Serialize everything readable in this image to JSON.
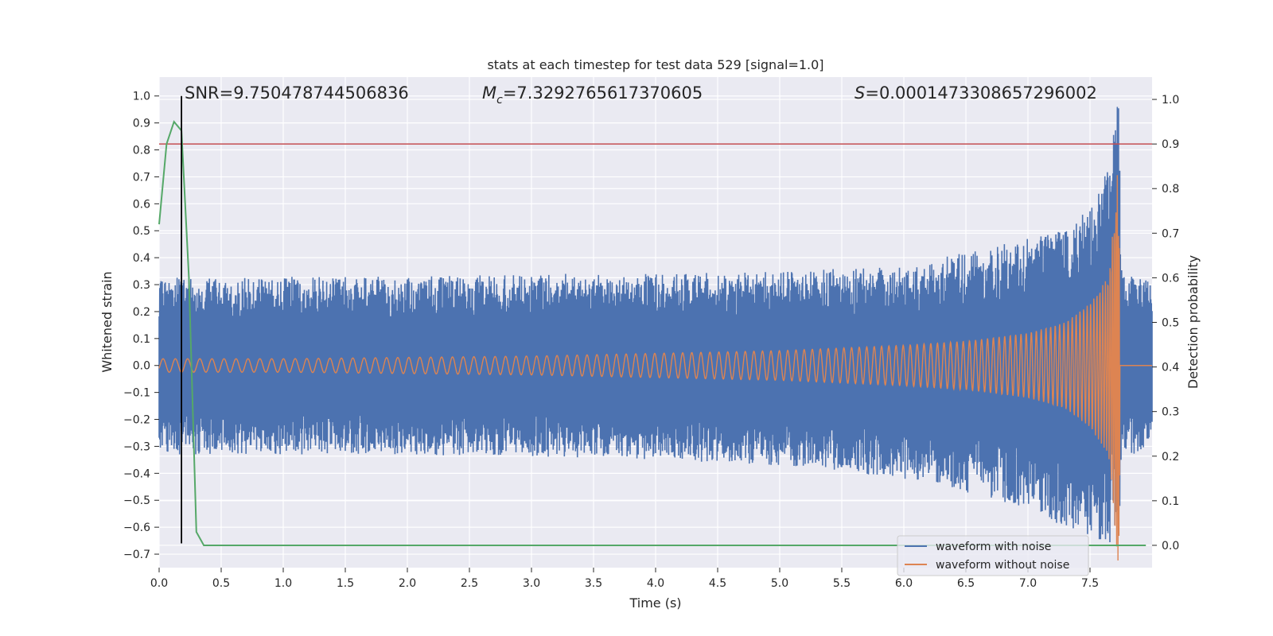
{
  "chart_data": {
    "type": "line",
    "title": "stats at each timestep for test data 529 [signal=1.0]",
    "xlabel": "Time (s)",
    "ylabel_left": "Whitened strain",
    "ylabel_right": "Detection probability",
    "xlim": [
      0.0,
      8.0
    ],
    "ylim_left": [
      -0.75,
      1.07
    ],
    "ylim_right": [
      -0.05,
      1.05
    ],
    "x_ticks": [
      "0.0",
      "0.5",
      "1.0",
      "1.5",
      "2.0",
      "2.5",
      "3.0",
      "3.5",
      "4.0",
      "4.5",
      "5.0",
      "5.5",
      "6.0",
      "6.5",
      "7.0",
      "7.5"
    ],
    "y_ticks_left": [
      "1.0",
      "0.9",
      "0.8",
      "0.7",
      "0.6",
      "0.5",
      "0.4",
      "0.3",
      "0.2",
      "0.1",
      "0.0",
      "−0.1",
      "−0.2",
      "−0.3",
      "−0.4",
      "−0.5",
      "−0.6",
      "−0.7"
    ],
    "y_ticks_right": [
      "1.0",
      "0.9",
      "0.8",
      "0.7",
      "0.6",
      "0.5",
      "0.4",
      "0.3",
      "0.2",
      "0.1",
      "0.0"
    ],
    "grid": true,
    "legend_position": "lower-right",
    "annotations": {
      "snr": "SNR=9.750478744506836",
      "mc_symbol": "M",
      "mc_sub": "c",
      "mc_value": "=7.3292765617370605",
      "s_symbol": "S",
      "s_value": "=0.0001473308657296002"
    },
    "threshold_line": {
      "axis": "right",
      "y": 0.9,
      "color": "#c44e52"
    },
    "marker_line": {
      "x": 0.18,
      "axis": "left",
      "y_from": -0.66,
      "y_to": 1.0,
      "color": "#000000"
    },
    "series": [
      {
        "name": "waveform with noise",
        "axis": "left",
        "color": "#4c72b0",
        "envelope": {
          "t": [
            0.0,
            1.0,
            2.0,
            3.0,
            4.0,
            5.0,
            6.0,
            6.5,
            7.0,
            7.3,
            7.5,
            7.65,
            7.73,
            7.76,
            8.0
          ],
          "upper": [
            0.33,
            0.33,
            0.33,
            0.34,
            0.34,
            0.35,
            0.37,
            0.42,
            0.47,
            0.52,
            0.58,
            0.75,
            1.0,
            0.33,
            0.33
          ],
          "lower": [
            -0.33,
            -0.33,
            -0.33,
            -0.34,
            -0.35,
            -0.37,
            -0.42,
            -0.47,
            -0.53,
            -0.6,
            -0.64,
            -0.66,
            -0.66,
            -0.33,
            -0.33
          ]
        }
      },
      {
        "name": "waveform without noise",
        "axis": "left",
        "color": "#dd8452",
        "envelope": {
          "t": [
            0.0,
            1.0,
            2.0,
            3.0,
            4.0,
            5.0,
            6.0,
            6.5,
            7.0,
            7.3,
            7.5,
            7.65,
            7.73,
            7.75,
            8.0
          ],
          "amplitude": [
            0.025,
            0.025,
            0.03,
            0.035,
            0.045,
            0.055,
            0.075,
            0.09,
            0.12,
            0.16,
            0.23,
            0.33,
            0.76,
            0.0,
            0.0
          ]
        }
      },
      {
        "name": "detection probability",
        "axis": "right",
        "color": "#55a868",
        "x": [
          0.0,
          0.06,
          0.12,
          0.18,
          0.24,
          0.3,
          0.36,
          0.42,
          1.0,
          2.0,
          3.0,
          4.0,
          5.0,
          6.0,
          7.0,
          7.95
        ],
        "y": [
          0.72,
          0.9,
          0.95,
          0.93,
          0.6,
          0.03,
          0.0,
          0.0,
          0.0,
          0.0,
          0.0,
          0.0,
          0.0,
          0.0,
          0.0,
          0.0
        ]
      }
    ],
    "legend": [
      {
        "label": "waveform with noise",
        "color": "#4c72b0"
      },
      {
        "label": "waveform without noise",
        "color": "#dd8452"
      }
    ]
  }
}
